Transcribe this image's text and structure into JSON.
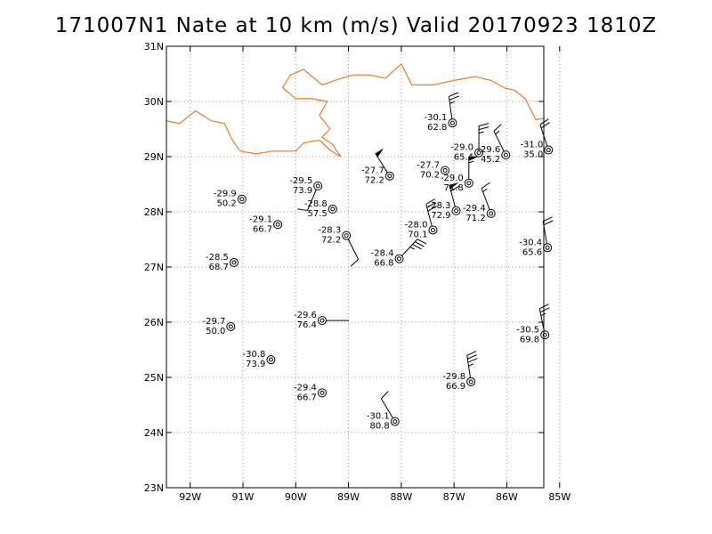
{
  "title": "171007N1 Nate at 10 km (m/s) Valid 20170923 1810Z",
  "colors": {
    "coastline": "#e87a2e",
    "frame": "#000000",
    "grid": "#999999",
    "text": "#000000"
  },
  "chart_data": {
    "type": "scatter",
    "title": "171007N1 Nate at 10 km (m/s) Valid 20170923 1810Z",
    "xlabel": "",
    "ylabel": "",
    "xlim": [
      -92.45,
      -85.3
    ],
    "ylim": [
      23,
      31
    ],
    "grid": true,
    "x_ticks": [
      -92,
      -91,
      -90,
      -89,
      -88,
      -87,
      -86,
      -85
    ],
    "x_tick_labels": [
      "92W",
      "91W",
      "90W",
      "89W",
      "88W",
      "87W",
      "86W",
      "85W"
    ],
    "y_ticks": [
      23,
      24,
      25,
      26,
      27,
      28,
      29,
      30,
      31
    ],
    "y_tick_labels": [
      "23N",
      "24N",
      "25N",
      "26N",
      "27N",
      "28N",
      "29N",
      "30N",
      "31N"
    ],
    "observations": [
      {
        "lon": -87.03,
        "lat": 29.61,
        "temp": "-30.1",
        "rh": "62.8",
        "wind_u": 2.0,
        "wind_v": -15.0
      },
      {
        "lon": -86.53,
        "lat": 29.07,
        "temp": "-29.0",
        "rh": "65.4",
        "wind_u": 0.0,
        "wind_v": -15.0
      },
      {
        "lon": -86.02,
        "lat": 29.03,
        "temp": "-29.6",
        "rh": "45.2",
        "wind_u": 4.0,
        "wind_v": -8.0
      },
      {
        "lon": -85.21,
        "lat": 29.12,
        "temp": "-31.0",
        "rh": "35.0",
        "wind_u": 4.0,
        "wind_v": -12.0
      },
      {
        "lon": -88.22,
        "lat": 28.65,
        "temp": "-27.7",
        "rh": "72.2",
        "wind_u": 14.0,
        "wind_v": -22.0
      },
      {
        "lon": -87.17,
        "lat": 28.75,
        "temp": "-27.7",
        "rh": "70.2",
        "wind_u": 0.0,
        "wind_v": 0.0
      },
      {
        "lon": -86.72,
        "lat": 28.52,
        "temp": "-29.0",
        "rh": "71.8",
        "wind_u": 0.0,
        "wind_v": -30.0
      },
      {
        "lon": -89.58,
        "lat": 28.47,
        "temp": "-29.5",
        "rh": "73.9",
        "wind_u": 3.0,
        "wind_v": 7.0
      },
      {
        "lon": -91.02,
        "lat": 28.23,
        "temp": "-29.9",
        "rh": "50.2",
        "wind_u": 0.0,
        "wind_v": 0.0
      },
      {
        "lon": -89.3,
        "lat": 28.05,
        "temp": "-28.8",
        "rh": "57.5",
        "wind_u": 0.0,
        "wind_v": 0.0
      },
      {
        "lon": -86.96,
        "lat": 28.02,
        "temp": "-28.3",
        "rh": "72.9",
        "wind_u": 8.0,
        "wind_v": -30.0
      },
      {
        "lon": -86.3,
        "lat": 27.97,
        "temp": "-29.4",
        "rh": "71.2",
        "wind_u": 3.0,
        "wind_v": -8.0
      },
      {
        "lon": -90.34,
        "lat": 27.77,
        "temp": "-29.1",
        "rh": "66.7",
        "wind_u": 0.0,
        "wind_v": 0.0
      },
      {
        "lon": -87.4,
        "lat": 27.67,
        "temp": "-28.0",
        "rh": "70.1",
        "wind_u": 4.0,
        "wind_v": -15.0
      },
      {
        "lon": -89.04,
        "lat": 27.57,
        "temp": "-28.3",
        "rh": "72.2",
        "wind_u": -3.0,
        "wind_v": 6.0
      },
      {
        "lon": -85.23,
        "lat": 27.35,
        "temp": "-30.4",
        "rh": "65.6",
        "wind_u": 2.0,
        "wind_v": -12.0
      },
      {
        "lon": -88.04,
        "lat": 27.15,
        "temp": "-28.4",
        "rh": "66.8",
        "wind_u": -14.0,
        "wind_v": -15.0
      },
      {
        "lon": -91.17,
        "lat": 27.08,
        "temp": "-28.5",
        "rh": "68.7",
        "wind_u": 0.0,
        "wind_v": 0.0
      },
      {
        "lon": -89.5,
        "lat": 26.03,
        "temp": "-29.6",
        "rh": "76.4",
        "wind_u": -2.0,
        "wind_v": 0.0
      },
      {
        "lon": -91.23,
        "lat": 25.92,
        "temp": "-29.7",
        "rh": "50.0",
        "wind_u": 0.0,
        "wind_v": 0.0
      },
      {
        "lon": -85.28,
        "lat": 25.77,
        "temp": "-30.5",
        "rh": "69.8",
        "wind_u": 3.0,
        "wind_v": -15.0
      },
      {
        "lon": -90.47,
        "lat": 25.32,
        "temp": "-30.8",
        "rh": "73.9",
        "wind_u": 0.0,
        "wind_v": 0.0
      },
      {
        "lon": -86.68,
        "lat": 24.92,
        "temp": "-29.8",
        "rh": "66.9",
        "wind_u": 3.0,
        "wind_v": -20.0
      },
      {
        "lon": -89.5,
        "lat": 24.72,
        "temp": "-29.4",
        "rh": "66.7",
        "wind_u": 0.0,
        "wind_v": 0.0
      },
      {
        "lon": -88.12,
        "lat": 24.2,
        "temp": "-30.1",
        "rh": "80.8",
        "wind_u": 3.0,
        "wind_v": -5.0
      }
    ],
    "coastline": [
      [
        -92.45,
        29.65
      ],
      [
        -92.2,
        29.6
      ],
      [
        -91.9,
        29.83
      ],
      [
        -91.6,
        29.65
      ],
      [
        -91.35,
        29.6
      ],
      [
        -91.2,
        29.3
      ],
      [
        -91.05,
        29.1
      ],
      [
        -90.75,
        29.05
      ],
      [
        -90.45,
        29.1
      ],
      [
        -90.0,
        29.1
      ],
      [
        -89.85,
        29.25
      ],
      [
        -89.55,
        29.3
      ],
      [
        -89.35,
        29.12
      ],
      [
        -89.15,
        29.0
      ],
      [
        -89.3,
        29.22
      ],
      [
        -89.5,
        29.35
      ],
      [
        -89.35,
        29.5
      ],
      [
        -89.55,
        29.75
      ],
      [
        -89.4,
        30.0
      ],
      [
        -89.7,
        30.05
      ],
      [
        -89.9,
        30.05
      ],
      [
        -90.0,
        30.05
      ],
      [
        -90.25,
        30.25
      ],
      [
        -90.1,
        30.48
      ],
      [
        -89.85,
        30.58
      ],
      [
        -89.5,
        30.3
      ],
      [
        -89.2,
        30.4
      ],
      [
        -88.9,
        30.48
      ],
      [
        -88.6,
        30.48
      ],
      [
        -88.3,
        30.42
      ],
      [
        -88.0,
        30.68
      ],
      [
        -87.8,
        30.3
      ],
      [
        -87.4,
        30.3
      ],
      [
        -87.0,
        30.38
      ],
      [
        -86.6,
        30.45
      ],
      [
        -86.3,
        30.38
      ],
      [
        -86.05,
        30.25
      ],
      [
        -85.85,
        30.2
      ],
      [
        -85.65,
        30.05
      ],
      [
        -85.45,
        29.67
      ],
      [
        -85.1,
        29.73
      ],
      [
        -84.95,
        29.73
      ],
      [
        -84.7,
        29.88
      ]
    ]
  }
}
